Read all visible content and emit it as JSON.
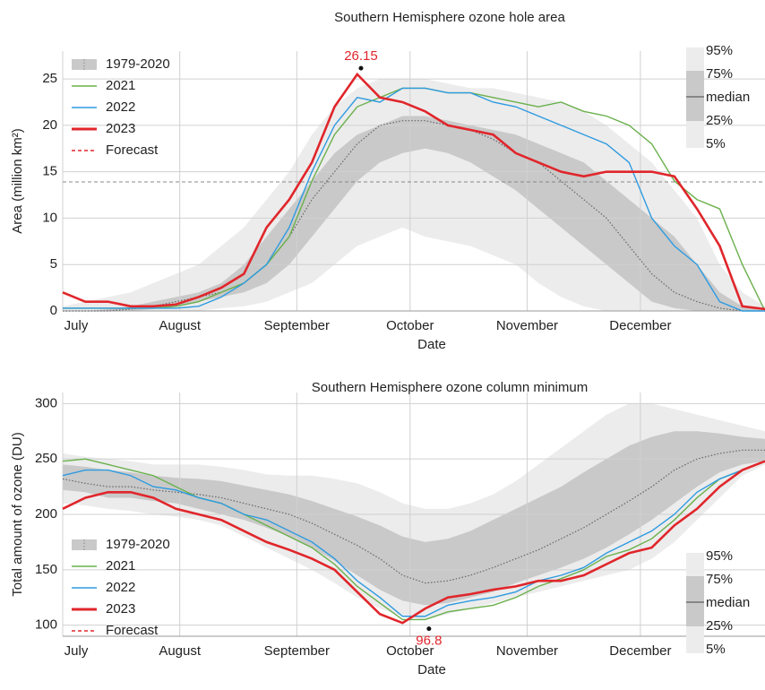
{
  "chart_data": [
    {
      "type": "line",
      "title": "Southern Hemisphere ozone hole area",
      "xlabel": "Date",
      "ylabel": "Area (million km²)",
      "x": [
        0,
        6,
        12,
        18,
        24,
        30,
        36,
        42,
        48,
        54,
        60,
        66,
        72,
        78,
        84,
        90,
        96,
        102,
        108,
        114,
        120,
        126,
        132,
        138,
        144,
        150,
        156,
        162,
        168,
        174,
        180,
        186
      ],
      "xlim": [
        0,
        186
      ],
      "xticks": [
        {
          "value": 0,
          "label": "July"
        },
        {
          "value": 31,
          "label": "August"
        },
        {
          "value": 62,
          "label": "September"
        },
        {
          "value": 92,
          "label": "October"
        },
        {
          "value": 123,
          "label": "November"
        },
        {
          "value": 153,
          "label": "December"
        }
      ],
      "ylim": [
        0,
        28
      ],
      "yticks": [
        0,
        5,
        10,
        15,
        20,
        25
      ],
      "grid": true,
      "legend": "upper left",
      "band_name": "1979-2020",
      "band_labels": [
        "95%",
        "75%",
        "median",
        "25%",
        "5%"
      ],
      "bands": {
        "p95": [
          0.5,
          1,
          1.5,
          2,
          3,
          4,
          5,
          7,
          9,
          12,
          15,
          19,
          22,
          24,
          25,
          25,
          25,
          24.5,
          24,
          24,
          23.5,
          23,
          22.5,
          21.5,
          20,
          18,
          16,
          13,
          10,
          5,
          2,
          0.5
        ],
        "p75": [
          0,
          0,
          0.2,
          0.5,
          1,
          1.5,
          2,
          3,
          5,
          8,
          11,
          14,
          17,
          19,
          20,
          21,
          21,
          20.5,
          20,
          19.5,
          19,
          18,
          17,
          16,
          14,
          12,
          10,
          8,
          5,
          2,
          0.5,
          0
        ],
        "median": [
          0,
          0,
          0,
          0.2,
          0.5,
          1,
          1.5,
          2,
          3,
          5,
          8,
          12,
          15,
          18,
          20,
          20.5,
          20.5,
          20,
          19.5,
          18.5,
          17,
          16,
          14,
          12,
          10,
          7,
          4,
          2,
          1,
          0.3,
          0,
          0
        ],
        "p25": [
          0,
          0,
          0,
          0,
          0.2,
          0.5,
          1,
          1.5,
          2,
          3,
          5,
          8,
          11,
          14,
          16,
          17,
          17.5,
          17,
          16,
          14.5,
          13,
          11,
          9,
          7,
          5,
          3,
          1,
          0.3,
          0,
          0,
          0,
          0
        ],
        "p5": [
          0,
          0,
          0,
          0,
          0,
          0,
          0,
          0.3,
          0.5,
          1,
          2,
          3,
          5,
          7,
          8,
          9,
          8,
          7.5,
          7,
          6,
          5,
          3,
          1.5,
          0.5,
          0,
          0,
          0,
          0,
          0,
          0,
          0,
          0
        ]
      },
      "series": [
        {
          "name": "2021",
          "color": "#6ab04c",
          "values": [
            0.3,
            0.3,
            0.3,
            0.3,
            0.3,
            0.5,
            1,
            2,
            3,
            5,
            8,
            14,
            19,
            22,
            23,
            24,
            24,
            23.5,
            23.5,
            23,
            22.5,
            22,
            22.5,
            21.5,
            21,
            20,
            18,
            14,
            12,
            11,
            5,
            0
          ]
        },
        {
          "name": "2022",
          "color": "#2e9be0",
          "values": [
            0.3,
            0.3,
            0.3,
            0.3,
            0.3,
            0.3,
            0.5,
            1.5,
            3,
            5,
            9,
            15,
            20,
            23,
            22.5,
            24,
            24,
            23.5,
            23.5,
            22.5,
            22,
            21,
            20,
            19,
            18,
            16,
            10,
            7,
            5,
            1,
            0,
            0
          ]
        },
        {
          "name": "2023",
          "color": "#e0262b",
          "values": [
            2,
            1,
            1,
            0.5,
            0.5,
            0.7,
            1.5,
            2.5,
            4,
            9,
            12,
            16,
            22,
            25.5,
            23,
            22.5,
            21.5,
            20,
            19.5,
            19,
            17,
            16,
            15,
            14.5,
            15,
            15,
            15,
            14.5,
            11,
            7,
            0.5,
            0.2
          ]
        },
        {
          "name": "Forecast",
          "color": "#e0262b",
          "dashed": true,
          "values": [
            null,
            null,
            null,
            null,
            null,
            null,
            null,
            null,
            null,
            null,
            null,
            null,
            null,
            null,
            null,
            null,
            null,
            null,
            null,
            null,
            null,
            null,
            null,
            null,
            null,
            null,
            null,
            null,
            null,
            null,
            null,
            null
          ]
        }
      ],
      "reference_line": 13.9,
      "annotation": {
        "x": 79,
        "y": 26.15,
        "position": "above"
      }
    },
    {
      "type": "line",
      "title": "Southern Hemisphere ozone column minimum",
      "xlabel": "Date",
      "ylabel": "Total amount of ozone (DU)",
      "x": [
        0,
        6,
        12,
        18,
        24,
        30,
        36,
        42,
        48,
        54,
        60,
        66,
        72,
        78,
        84,
        90,
        96,
        102,
        108,
        114,
        120,
        126,
        132,
        138,
        144,
        150,
        156,
        162,
        168,
        174,
        180,
        186
      ],
      "xlim": [
        0,
        186
      ],
      "xticks": [
        {
          "value": 0,
          "label": "July"
        },
        {
          "value": 31,
          "label": "August"
        },
        {
          "value": 62,
          "label": "September"
        },
        {
          "value": 92,
          "label": "October"
        },
        {
          "value": 123,
          "label": "November"
        },
        {
          "value": 153,
          "label": "December"
        }
      ],
      "ylim": [
        90,
        310
      ],
      "yticks": [
        100,
        150,
        200,
        250,
        300
      ],
      "grid": true,
      "legend": "lower left",
      "band_name": "1979-2020",
      "band_labels": [
        "95%",
        "75%",
        "median",
        "25%",
        "5%"
      ],
      "bands": {
        "p95": [
          255,
          252,
          250,
          248,
          245,
          245,
          245,
          243,
          240,
          236,
          235,
          235,
          232,
          228,
          220,
          210,
          205,
          205,
          210,
          218,
          230,
          245,
          260,
          275,
          290,
          300,
          300,
          295,
          290,
          285,
          280,
          275
        ],
        "p75": [
          245,
          243,
          240,
          238,
          235,
          233,
          232,
          230,
          226,
          222,
          218,
          212,
          205,
          198,
          190,
          180,
          175,
          178,
          185,
          195,
          205,
          215,
          225,
          238,
          250,
          262,
          270,
          275,
          275,
          273,
          270,
          268
        ],
        "median": [
          232,
          228,
          225,
          225,
          222,
          220,
          218,
          215,
          210,
          205,
          200,
          192,
          182,
          172,
          160,
          145,
          138,
          140,
          145,
          152,
          160,
          168,
          178,
          188,
          200,
          212,
          225,
          240,
          250,
          255,
          258,
          258
        ],
        "p25": [
          222,
          220,
          215,
          215,
          212,
          210,
          205,
          200,
          195,
          188,
          180,
          170,
          158,
          145,
          132,
          122,
          118,
          120,
          125,
          130,
          138,
          145,
          152,
          160,
          170,
          182,
          195,
          210,
          225,
          238,
          245,
          248
        ],
        "p5": [
          210,
          208,
          205,
          203,
          200,
          198,
          195,
          190,
          180,
          170,
          160,
          150,
          138,
          125,
          115,
          108,
          105,
          110,
          115,
          120,
          125,
          130,
          135,
          140,
          145,
          150,
          160,
          175,
          195,
          215,
          235,
          245
        ]
      },
      "series": [
        {
          "name": "2021",
          "color": "#6ab04c",
          "values": [
            248,
            250,
            245,
            240,
            235,
            225,
            215,
            210,
            200,
            190,
            180,
            170,
            155,
            135,
            120,
            105,
            105,
            112,
            115,
            118,
            125,
            135,
            142,
            150,
            162,
            168,
            178,
            195,
            215,
            232,
            240,
            248
          ]
        },
        {
          "name": "2022",
          "color": "#2e9be0",
          "values": [
            235,
            240,
            240,
            235,
            225,
            222,
            215,
            210,
            200,
            195,
            185,
            175,
            160,
            140,
            125,
            108,
            108,
            118,
            122,
            125,
            130,
            140,
            145,
            152,
            165,
            175,
            185,
            200,
            220,
            232,
            240,
            248
          ]
        },
        {
          "name": "2023",
          "color": "#e0262b",
          "values": [
            205,
            215,
            220,
            220,
            215,
            205,
            200,
            195,
            185,
            175,
            168,
            160,
            150,
            130,
            110,
            102,
            115,
            125,
            128,
            132,
            135,
            140,
            140,
            145,
            155,
            165,
            170,
            190,
            205,
            225,
            240,
            248
          ]
        },
        {
          "name": "Forecast",
          "color": "#e0262b",
          "dashed": true,
          "values": [
            null,
            null,
            null,
            null,
            null,
            null,
            null,
            null,
            null,
            null,
            null,
            null,
            null,
            null,
            null,
            null,
            null,
            null,
            null,
            null,
            null,
            null,
            null,
            null,
            null,
            null,
            null,
            null,
            null,
            null,
            null,
            null
          ]
        }
      ],
      "annotation": {
        "x": 97,
        "y": 96.8,
        "position": "below"
      }
    }
  ]
}
